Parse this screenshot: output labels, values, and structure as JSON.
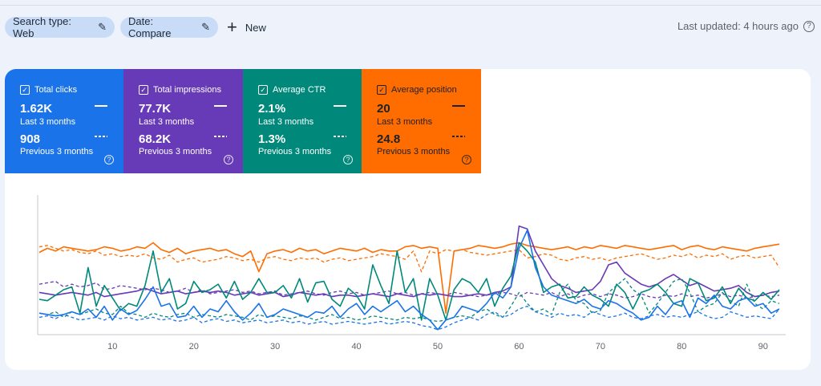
{
  "filters": {
    "search_type": "Search type: Web",
    "date": "Date: Compare",
    "new_label": "New",
    "last_updated": "Last updated: 4 hours ago"
  },
  "metrics": [
    {
      "label": "Total clicks",
      "current": "1.62K",
      "current_period": "Last 3 months",
      "previous": "908",
      "previous_period": "Previous 3 months",
      "color": "#1a73e8"
    },
    {
      "label": "Total impressions",
      "current": "77.7K",
      "current_period": "Last 3 months",
      "previous": "68.2K",
      "previous_period": "Previous 3 months",
      "color": "#673ab7"
    },
    {
      "label": "Average CTR",
      "current": "2.1%",
      "current_period": "Last 3 months",
      "previous": "1.3%",
      "previous_period": "Previous 3 months",
      "color": "#00897b"
    },
    {
      "label": "Average position",
      "current": "20",
      "current_period": "Last 3 months",
      "previous": "24.8",
      "previous_period": "Previous 3 months",
      "color": "#ff6d00"
    }
  ],
  "chart_data": {
    "type": "line",
    "x_ticks": [
      10,
      20,
      30,
      40,
      50,
      60,
      70,
      80,
      90
    ],
    "xlim": [
      1,
      92
    ],
    "ylim": [
      0,
      100
    ],
    "grid": false,
    "series": [
      {
        "name": "Average position",
        "period": "Last 3 months",
        "color": "#ff6d00",
        "dash": false,
        "values": [
          59,
          62,
          60,
          63,
          62,
          61,
          60,
          61,
          63,
          62,
          60,
          61,
          63,
          62,
          66,
          61,
          59,
          62,
          58,
          60,
          61,
          62,
          60,
          61,
          58,
          56,
          60,
          45,
          58,
          60,
          61,
          59,
          62,
          60,
          61,
          58,
          60,
          62,
          61,
          60,
          62,
          59,
          61,
          60,
          60,
          63,
          64,
          62,
          63,
          62,
          15,
          60,
          61,
          62,
          64,
          63,
          62,
          63,
          65,
          66,
          64,
          63,
          62,
          61,
          62,
          63,
          61,
          63,
          62,
          64,
          63,
          62,
          64,
          63,
          62,
          61,
          62,
          63,
          64,
          61,
          63,
          64,
          62,
          61,
          63,
          62,
          61,
          60,
          62,
          63,
          64,
          65
        ]
      },
      {
        "name": "Average position",
        "period": "Previous 3 months",
        "color": "#ff6d00",
        "dash": true,
        "values": [
          63,
          64,
          62,
          60,
          61,
          59,
          58,
          60,
          57,
          58,
          56,
          57,
          56,
          58,
          55,
          54,
          57,
          52,
          54,
          55,
          52,
          53,
          54,
          56,
          55,
          53,
          54,
          52,
          55,
          56,
          54,
          53,
          55,
          54,
          55,
          52,
          54,
          55,
          53,
          54,
          55,
          56,
          58,
          57,
          56,
          54,
          60,
          45,
          60,
          58,
          61,
          60,
          61,
          59,
          58,
          57,
          58,
          59,
          60,
          61,
          55,
          56,
          58,
          57,
          54,
          53,
          55,
          56,
          54,
          55,
          53,
          55,
          56,
          57,
          58,
          56,
          54,
          55,
          57,
          56,
          58,
          55,
          57,
          56,
          58,
          54,
          56,
          57,
          55,
          56,
          57,
          48
        ]
      },
      {
        "name": "Total impressions",
        "period": "Last 3 months",
        "color": "#673ab7",
        "dash": false,
        "values": [
          30,
          29,
          28,
          29,
          30,
          29,
          28,
          30,
          27,
          28,
          29,
          30,
          31,
          33,
          31,
          29,
          30,
          31,
          29,
          30,
          31,
          30,
          31,
          30,
          28,
          29,
          30,
          28,
          29,
          30,
          27,
          28,
          30,
          29,
          28,
          29,
          27,
          28,
          28,
          27,
          28,
          29,
          28,
          27,
          29,
          28,
          27,
          29,
          28,
          29,
          28,
          27,
          27,
          28,
          29,
          28,
          30,
          31,
          34,
          78,
          76,
          60,
          50,
          40,
          35,
          33,
          30,
          31,
          32,
          38,
          50,
          52,
          44,
          40,
          36,
          34,
          36,
          40,
          43,
          39,
          35,
          37,
          34,
          31,
          32,
          33,
          35,
          30,
          27,
          28,
          30,
          31
        ]
      },
      {
        "name": "Total impressions",
        "period": "Previous 3 months",
        "color": "#673ab7",
        "dash": true,
        "values": [
          36,
          37,
          38,
          34,
          36,
          34,
          35,
          37,
          32,
          33,
          35,
          34,
          33,
          32,
          33,
          32,
          30,
          31,
          33,
          30,
          32,
          29,
          30,
          31,
          32,
          30,
          31,
          29,
          30,
          31,
          28,
          29,
          30,
          31,
          29,
          28,
          30,
          31,
          29,
          30,
          28,
          29,
          30,
          31,
          29,
          30,
          28,
          29,
          30,
          29,
          28,
          30,
          29,
          28,
          27,
          28,
          29,
          30,
          29,
          27,
          30,
          29,
          28,
          30,
          27,
          29,
          26,
          28,
          29,
          27,
          29,
          28,
          26,
          27,
          29,
          27,
          26,
          28,
          27,
          29,
          27,
          28,
          26,
          27,
          29,
          27,
          28,
          26,
          27,
          28,
          27,
          28
        ]
      },
      {
        "name": "Average CTR",
        "period": "Last 3 months",
        "color": "#00897b",
        "dash": false,
        "values": [
          25,
          24,
          28,
          32,
          34,
          15,
          48,
          20,
          35,
          26,
          17,
          22,
          20,
          35,
          60,
          30,
          40,
          18,
          22,
          38,
          30,
          32,
          36,
          26,
          38,
          25,
          30,
          40,
          30,
          30,
          35,
          26,
          40,
          23,
          37,
          38,
          25,
          20,
          33,
          28,
          18,
          50,
          35,
          22,
          60,
          30,
          40,
          10,
          40,
          28,
          10,
          32,
          40,
          37,
          30,
          40,
          20,
          33,
          42,
          66,
          60,
          52,
          30,
          34,
          36,
          26,
          27,
          34,
          28,
          25,
          20,
          36,
          30,
          18,
          30,
          32,
          36,
          30,
          22,
          20,
          40,
          37,
          24,
          26,
          34,
          22,
          33,
          26,
          24,
          30,
          25,
          32
        ]
      },
      {
        "name": "Average CTR",
        "period": "Previous 3 months",
        "color": "#00897b",
        "dash": true,
        "values": [
          15,
          14,
          16,
          12,
          16,
          14,
          16,
          18,
          15,
          14,
          20,
          15,
          14,
          12,
          15,
          13,
          12,
          14,
          15,
          12,
          14,
          13,
          12,
          14,
          13,
          12,
          10,
          14,
          12,
          13,
          12,
          11,
          13,
          12,
          10,
          12,
          14,
          11,
          12,
          10,
          11,
          13,
          12,
          11,
          10,
          12,
          11,
          12,
          10,
          9,
          10,
          12,
          13,
          12,
          16,
          18,
          14,
          12,
          20,
          30,
          22,
          16,
          18,
          14,
          30,
          36,
          24,
          22,
          15,
          17,
          30,
          35,
          40,
          32,
          28,
          15,
          22,
          30,
          38,
          40,
          30,
          16,
          20,
          22,
          30,
          24,
          20,
          36,
          22,
          18,
          24,
          22
        ]
      },
      {
        "name": "Total clicks",
        "period": "Last 3 months",
        "color": "#1a73e8",
        "dash": false,
        "values": [
          15,
          14,
          13,
          14,
          16,
          14,
          18,
          12,
          20,
          10,
          18,
          14,
          17,
          25,
          34,
          20,
          22,
          12,
          13,
          20,
          12,
          18,
          16,
          24,
          16,
          10,
          15,
          22,
          12,
          14,
          18,
          16,
          14,
          12,
          16,
          15,
          20,
          12,
          18,
          22,
          14,
          20,
          16,
          20,
          24,
          16,
          20,
          14,
          10,
          3,
          10,
          12,
          20,
          18,
          16,
          22,
          30,
          26,
          34,
          62,
          75,
          48,
          34,
          28,
          26,
          24,
          22,
          25,
          20,
          18,
          24,
          22,
          18,
          15,
          10,
          12,
          20,
          14,
          22,
          24,
          12,
          26,
          22,
          28,
          20,
          18,
          24,
          26,
          20,
          22,
          15,
          18
        ]
      },
      {
        "name": "Total clicks",
        "period": "Previous 3 months",
        "color": "#1a73e8",
        "dash": true,
        "values": [
          12,
          13,
          11,
          14,
          12,
          10,
          11,
          12,
          10,
          13,
          11,
          12,
          10,
          11,
          12,
          10,
          11,
          9,
          10,
          12,
          8,
          10,
          11,
          9,
          10,
          8,
          9,
          10,
          8,
          9,
          10,
          8,
          9,
          7,
          8,
          9,
          7,
          8,
          9,
          8,
          7,
          8,
          9,
          7,
          8,
          9,
          8,
          6,
          5,
          3,
          5,
          8,
          10,
          12,
          10,
          14,
          16,
          12,
          14,
          18,
          20,
          16,
          14,
          12,
          15,
          13,
          14,
          12,
          16,
          14,
          12,
          13,
          15,
          12,
          11,
          13,
          14,
          12,
          13,
          12,
          14,
          16,
          13,
          11,
          12,
          16,
          14,
          12,
          13,
          12,
          11,
          18
        ]
      }
    ]
  }
}
